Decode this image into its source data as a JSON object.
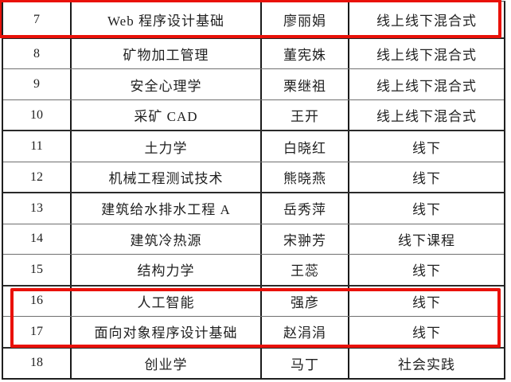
{
  "table": {
    "rows": [
      [
        "7",
        "Web 程序设计基础",
        "廖丽娟",
        "线上线下混合式"
      ],
      [
        "8",
        "矿物加工管理",
        "董宪姝",
        "线上线下混合式"
      ],
      [
        "9",
        "安全心理学",
        "栗继祖",
        "线上线下混合式"
      ],
      [
        "10",
        "采矿 CAD",
        "王开",
        "线上线下混合式"
      ],
      [
        "11",
        "土力学",
        "白晓红",
        "线下"
      ],
      [
        "12",
        "机械工程测试技术",
        "熊晓燕",
        "线下"
      ],
      [
        "13",
        "建筑给水排水工程 A",
        "岳秀萍",
        "线下"
      ],
      [
        "14",
        "建筑冷热源",
        "宋翀芳",
        "线下课程"
      ],
      [
        "15",
        "结构力学",
        "王蕊",
        "线下"
      ],
      [
        "16",
        "人工智能",
        "强彦",
        "线下"
      ],
      [
        "17",
        "面向对象程序设计基础",
        "赵涓涓",
        "线下"
      ],
      [
        "18",
        "创业学",
        "马丁",
        "社会实践"
      ]
    ]
  },
  "annotations": {
    "highlight_color": "#e91109",
    "boxes": [
      {
        "name": "highlight-box-row-7",
        "rows": "7"
      },
      {
        "name": "highlight-box-rows-16-17",
        "rows": "16-17"
      }
    ]
  }
}
